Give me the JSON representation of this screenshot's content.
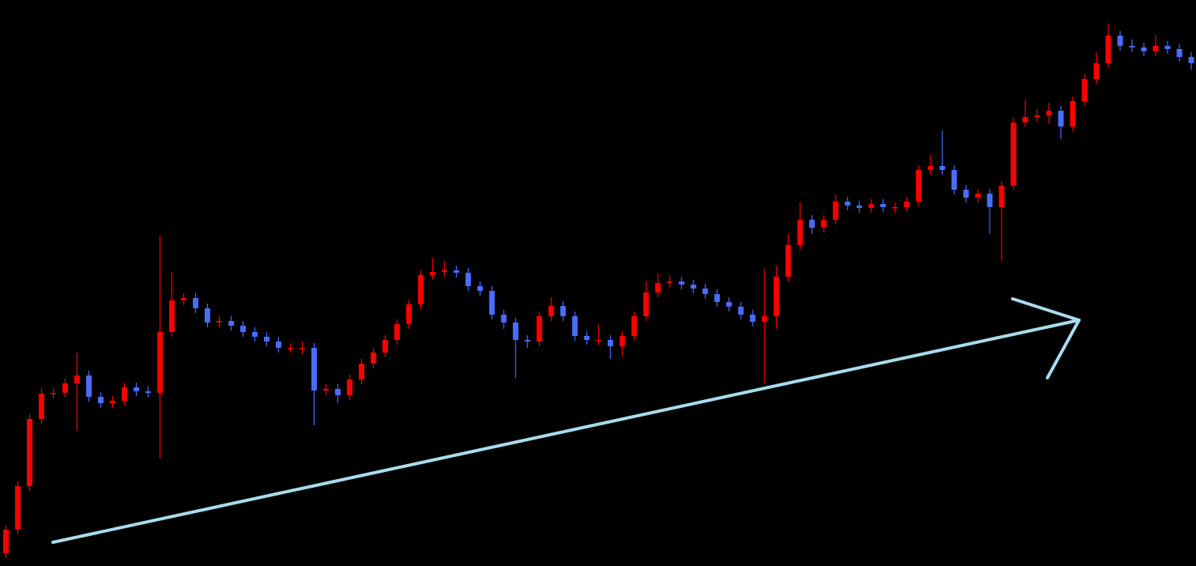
{
  "chart_data": {
    "type": "candlestick",
    "up_color": "#ff0000",
    "down_color": "#4a6cff",
    "xlim": [
      -0.5,
      100.4
    ],
    "ylim": [
      0,
      716
    ],
    "x": [
      0,
      1,
      2,
      3,
      4,
      5,
      6,
      7,
      8,
      9,
      10,
      11,
      12,
      13,
      14,
      15,
      16,
      17,
      18,
      19,
      20,
      21,
      22,
      23,
      24,
      25,
      26,
      27,
      28,
      29,
      30,
      31,
      32,
      33,
      34,
      35,
      36,
      37,
      38,
      39,
      40,
      41,
      42,
      43,
      44,
      45,
      46,
      47,
      48,
      49,
      50,
      51,
      52,
      53,
      54,
      55,
      56,
      57,
      58,
      59,
      60,
      61,
      62,
      63,
      64,
      65,
      66,
      67,
      68,
      69,
      70,
      71,
      72,
      73,
      74,
      75,
      76,
      77,
      78,
      79,
      80,
      81,
      82,
      83,
      84,
      85,
      86,
      87,
      88,
      89,
      90,
      91,
      92,
      93,
      94,
      95,
      96,
      97,
      98,
      99,
      100
    ],
    "open": [
      16,
      46,
      101,
      186,
      218,
      219,
      231,
      241,
      214,
      206,
      209,
      226,
      221,
      219,
      296,
      336,
      339,
      326,
      308,
      310,
      304,
      296,
      290,
      284,
      276,
      276,
      276,
      222,
      224,
      216,
      236,
      256,
      270,
      286,
      306,
      331,
      368,
      372,
      374,
      371,
      354,
      348,
      318,
      308,
      286,
      284,
      316,
      329,
      316,
      291,
      286,
      286,
      278,
      291,
      316,
      346,
      358,
      360,
      356,
      351,
      344,
      334,
      328,
      318,
      309,
      316,
      366,
      406,
      438,
      428,
      438,
      461,
      456,
      453,
      458,
      454,
      454,
      461,
      501,
      506,
      501,
      476,
      466,
      471,
      454,
      481,
      561,
      568,
      570,
      576,
      556,
      588,
      616,
      636,
      671,
      658,
      656,
      651,
      658,
      654,
      644
    ],
    "high": [
      52,
      107,
      192,
      224,
      225,
      237,
      270,
      247,
      220,
      215,
      232,
      232,
      227,
      418,
      372,
      345,
      345,
      332,
      316,
      316,
      310,
      302,
      296,
      290,
      282,
      284,
      282,
      230,
      230,
      242,
      262,
      276,
      292,
      312,
      337,
      374,
      390,
      386,
      380,
      377,
      360,
      354,
      324,
      314,
      292,
      322,
      340,
      335,
      322,
      297,
      306,
      292,
      297,
      322,
      360,
      370,
      368,
      366,
      362,
      357,
      350,
      340,
      334,
      324,
      376,
      380,
      420,
      460,
      444,
      444,
      470,
      467,
      462,
      464,
      464,
      460,
      467,
      507,
      520,
      551,
      507,
      482,
      477,
      477,
      487,
      567,
      590,
      578,
      586,
      582,
      594,
      622,
      650,
      686,
      677,
      666,
      662,
      672,
      664,
      660,
      650
    ],
    "low": [
      10,
      40,
      95,
      180,
      212,
      213,
      171,
      208,
      200,
      200,
      203,
      215,
      213,
      136,
      290,
      330,
      320,
      302,
      302,
      298,
      290,
      284,
      278,
      270,
      270,
      268,
      178,
      216,
      206,
      210,
      230,
      250,
      264,
      280,
      300,
      325,
      362,
      366,
      365,
      348,
      342,
      312,
      300,
      238,
      276,
      278,
      310,
      310,
      285,
      280,
      280,
      262,
      265,
      285,
      310,
      340,
      352,
      350,
      345,
      338,
      328,
      322,
      312,
      303,
      231,
      300,
      360,
      400,
      420,
      422,
      432,
      450,
      447,
      447,
      448,
      446,
      448,
      455,
      495,
      495,
      470,
      460,
      460,
      420,
      386,
      475,
      555,
      562,
      560,
      540,
      550,
      582,
      610,
      630,
      652,
      650,
      645,
      645,
      648,
      638,
      628
    ],
    "close": [
      46,
      101,
      186,
      218,
      219,
      231,
      241,
      214,
      206,
      209,
      226,
      221,
      219,
      296,
      336,
      339,
      326,
      308,
      310,
      304,
      296,
      290,
      284,
      276,
      276,
      276,
      222,
      224,
      216,
      236,
      256,
      270,
      286,
      306,
      331,
      368,
      372,
      374,
      371,
      354,
      348,
      318,
      308,
      286,
      284,
      316,
      329,
      316,
      291,
      286,
      286,
      278,
      291,
      316,
      346,
      358,
      360,
      356,
      351,
      344,
      334,
      328,
      318,
      309,
      316,
      366,
      406,
      438,
      428,
      438,
      461,
      456,
      453,
      458,
      454,
      454,
      461,
      501,
      506,
      501,
      476,
      466,
      471,
      454,
      481,
      561,
      568,
      570,
      576,
      556,
      588,
      616,
      636,
      671,
      658,
      656,
      651,
      658,
      654,
      644,
      636
    ]
  }
}
